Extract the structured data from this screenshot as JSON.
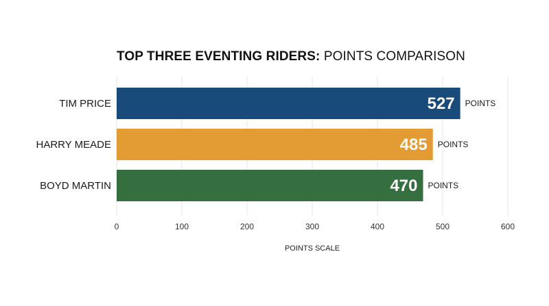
{
  "chart_data": {
    "type": "bar",
    "orientation": "horizontal",
    "title_bold": "TOP THREE EVENTING RIDERS:",
    "title_rest": "POINTS COMPARISON",
    "categories": [
      "TIM PRICE",
      "HARRY MEADE",
      "BOYD MARTIN"
    ],
    "values": [
      527,
      485,
      470
    ],
    "colors": [
      "#184a7a",
      "#e39b34",
      "#356e3f"
    ],
    "value_unit": "POINTS",
    "xlabel": "POINTS SCALE",
    "ylabel": "",
    "xlim": [
      0,
      600
    ],
    "xticks": [
      0,
      100,
      200,
      300,
      400,
      500,
      600
    ],
    "grid": true
  }
}
